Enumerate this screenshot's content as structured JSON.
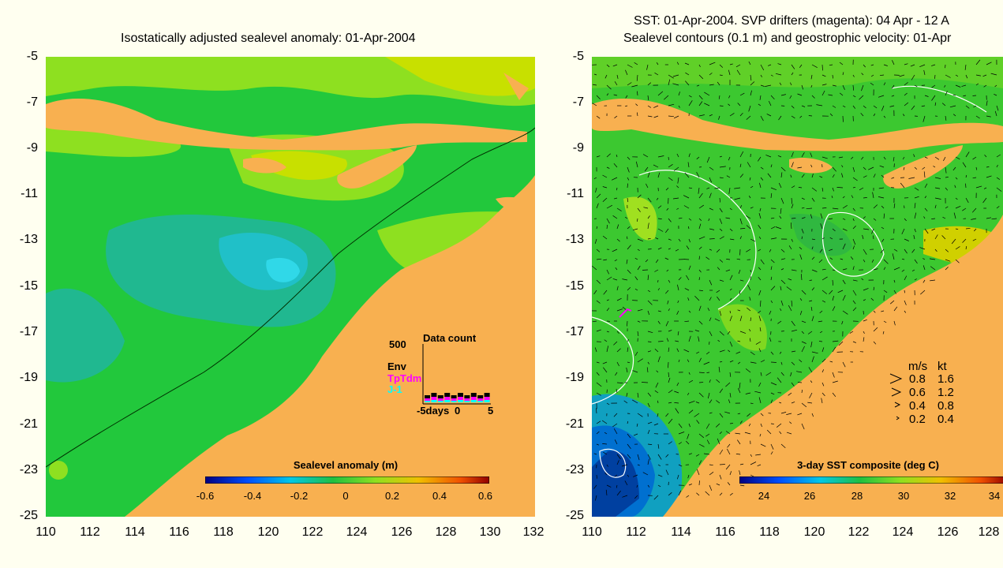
{
  "left": {
    "title": "Isostatically adjusted sealevel anomaly: 01-Apr-2004",
    "y_ticks": [
      "-5",
      "-7",
      "-9",
      "-11",
      "-13",
      "-15",
      "-17",
      "-19",
      "-21",
      "-23",
      "-25"
    ],
    "x_ticks": [
      "110",
      "112",
      "114",
      "116",
      "118",
      "120",
      "122",
      "124",
      "126",
      "128",
      "130",
      "132"
    ],
    "colorbar": {
      "label": "Sealevel anomaly (m)",
      "ticks": [
        "-0.6",
        "-0.4",
        "-0.2",
        "0",
        "0.2",
        "0.4",
        "0.6"
      ]
    },
    "data_count": {
      "title": "Data count",
      "max": "500",
      "series": [
        "Env",
        "TpTdm",
        "J-1"
      ],
      "series_colors": [
        "#000000",
        "#ff00ff",
        "#00ffff"
      ],
      "x_labels": [
        "-5days",
        "0",
        "5"
      ]
    }
  },
  "right": {
    "title_line1": "SST: 01-Apr-2004. SVP drifters (magenta): 04 Apr - 12 A",
    "title_line2": "Sealevel contours (0.1 m) and geostrophic velocity: 01-Apr",
    "y_ticks": [
      "-5",
      "-7",
      "-9",
      "-11",
      "-13",
      "-15",
      "-17",
      "-19",
      "-21",
      "-23",
      "-25"
    ],
    "x_ticks": [
      "110",
      "112",
      "114",
      "116",
      "118",
      "120",
      "122",
      "124",
      "126",
      "128"
    ],
    "colorbar": {
      "label": "3-day SST composite (deg C)",
      "ticks": [
        "24",
        "26",
        "28",
        "30",
        "32",
        "34"
      ]
    },
    "speed_legend": {
      "header_ms": "m/s",
      "header_kt": "kt",
      "rows": [
        {
          "ms": "0.8",
          "kt": "1.6"
        },
        {
          "ms": "0.6",
          "kt": "1.2"
        },
        {
          "ms": "0.4",
          "kt": "0.8"
        },
        {
          "ms": "0.2",
          "kt": "0.4"
        }
      ]
    }
  },
  "colors": {
    "land": "#f8b050",
    "ocean_green": "#22c83c",
    "ocean_light": "#8ee020",
    "ocean_yellow": "#c8e000",
    "ocean_teal": "#20b890",
    "ocean_cyan": "#20c0c8"
  }
}
